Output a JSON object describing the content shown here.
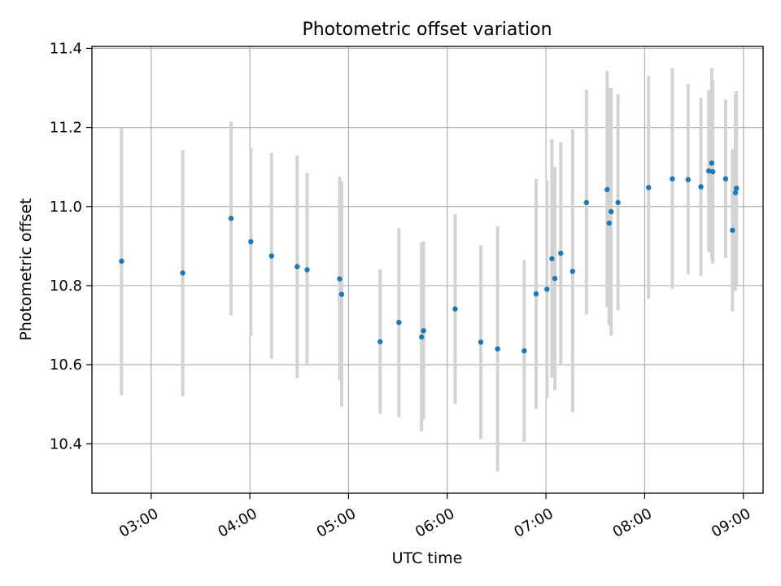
{
  "chart_data": {
    "type": "scatter",
    "title": "Photometric offset variation",
    "xlabel": "UTC time",
    "ylabel": "Photometric offset",
    "xlim": [
      2.4,
      9.2
    ],
    "ylim": [
      10.275,
      11.405
    ],
    "xticks": [
      3,
      4,
      5,
      6,
      7,
      8,
      9
    ],
    "xtick_labels": [
      "03:00",
      "04:00",
      "05:00",
      "06:00",
      "07:00",
      "08:00",
      "09:00"
    ],
    "yticks": [
      10.4,
      10.6,
      10.8,
      11.0,
      11.2,
      11.4
    ],
    "ytick_labels": [
      "10.4",
      "10.6",
      "10.8",
      "11.0",
      "11.2",
      "11.4"
    ],
    "grid": true,
    "colors": {
      "point": "#1f77b4",
      "errorbar": "#d3d3d3",
      "grid": "#b0b0b0"
    },
    "series": [
      {
        "name": "offset",
        "points": [
          {
            "x": 2.7,
            "y": 10.862,
            "lo": 10.523,
            "hi": 11.2
          },
          {
            "x": 3.32,
            "y": 10.832,
            "lo": 10.52,
            "hi": 11.143
          },
          {
            "x": 3.81,
            "y": 10.97,
            "lo": 10.725,
            "hi": 11.215
          },
          {
            "x": 4.01,
            "y": 10.911,
            "lo": 10.673,
            "hi": 11.149
          },
          {
            "x": 4.22,
            "y": 10.875,
            "lo": 10.615,
            "hi": 11.136
          },
          {
            "x": 4.48,
            "y": 10.848,
            "lo": 10.566,
            "hi": 11.129
          },
          {
            "x": 4.58,
            "y": 10.84,
            "lo": 10.597,
            "hi": 11.085
          },
          {
            "x": 4.91,
            "y": 10.817,
            "lo": 10.56,
            "hi": 11.075
          },
          {
            "x": 4.93,
            "y": 10.778,
            "lo": 10.494,
            "hi": 11.063
          },
          {
            "x": 5.32,
            "y": 10.658,
            "lo": 10.476,
            "hi": 10.841
          },
          {
            "x": 5.51,
            "y": 10.707,
            "lo": 10.467,
            "hi": 10.946
          },
          {
            "x": 5.74,
            "y": 10.67,
            "lo": 10.432,
            "hi": 10.91
          },
          {
            "x": 5.76,
            "y": 10.686,
            "lo": 10.462,
            "hi": 10.912
          },
          {
            "x": 6.08,
            "y": 10.741,
            "lo": 10.501,
            "hi": 10.981
          },
          {
            "x": 6.34,
            "y": 10.657,
            "lo": 10.412,
            "hi": 10.902
          },
          {
            "x": 6.51,
            "y": 10.64,
            "lo": 10.33,
            "hi": 10.95
          },
          {
            "x": 6.78,
            "y": 10.635,
            "lo": 10.405,
            "hi": 10.865
          },
          {
            "x": 6.9,
            "y": 10.779,
            "lo": 10.488,
            "hi": 11.07
          },
          {
            "x": 7.01,
            "y": 10.791,
            "lo": 10.516,
            "hi": 11.066
          },
          {
            "x": 7.06,
            "y": 10.868,
            "lo": 10.567,
            "hi": 11.17
          },
          {
            "x": 7.09,
            "y": 10.818,
            "lo": 10.535,
            "hi": 11.1
          },
          {
            "x": 7.15,
            "y": 10.882,
            "lo": 10.6,
            "hi": 11.163
          },
          {
            "x": 7.27,
            "y": 10.836,
            "lo": 10.48,
            "hi": 11.195
          },
          {
            "x": 7.41,
            "y": 11.01,
            "lo": 10.727,
            "hi": 11.295
          },
          {
            "x": 7.62,
            "y": 11.043,
            "lo": 10.745,
            "hi": 11.343
          },
          {
            "x": 7.64,
            "y": 10.958,
            "lo": 10.7,
            "hi": 11.3
          },
          {
            "x": 7.66,
            "y": 10.987,
            "lo": 10.673,
            "hi": 11.3
          },
          {
            "x": 7.73,
            "y": 11.01,
            "lo": 10.737,
            "hi": 11.284
          },
          {
            "x": 8.04,
            "y": 11.048,
            "lo": 10.767,
            "hi": 11.33
          },
          {
            "x": 8.28,
            "y": 11.07,
            "lo": 10.792,
            "hi": 11.35
          },
          {
            "x": 8.44,
            "y": 11.068,
            "lo": 10.829,
            "hi": 11.31
          },
          {
            "x": 8.57,
            "y": 11.05,
            "lo": 10.825,
            "hi": 11.275
          },
          {
            "x": 8.65,
            "y": 11.09,
            "lo": 10.885,
            "hi": 11.295
          },
          {
            "x": 8.68,
            "y": 11.11,
            "lo": 10.87,
            "hi": 11.35
          },
          {
            "x": 8.69,
            "y": 11.088,
            "lo": 10.856,
            "hi": 11.32
          },
          {
            "x": 8.82,
            "y": 11.07,
            "lo": 10.87,
            "hi": 11.27
          },
          {
            "x": 8.89,
            "y": 10.94,
            "lo": 10.735,
            "hi": 11.145
          },
          {
            "x": 8.92,
            "y": 11.035,
            "lo": 10.787,
            "hi": 11.283
          },
          {
            "x": 8.93,
            "y": 11.046,
            "lo": 10.8,
            "hi": 11.292
          }
        ]
      }
    ]
  }
}
